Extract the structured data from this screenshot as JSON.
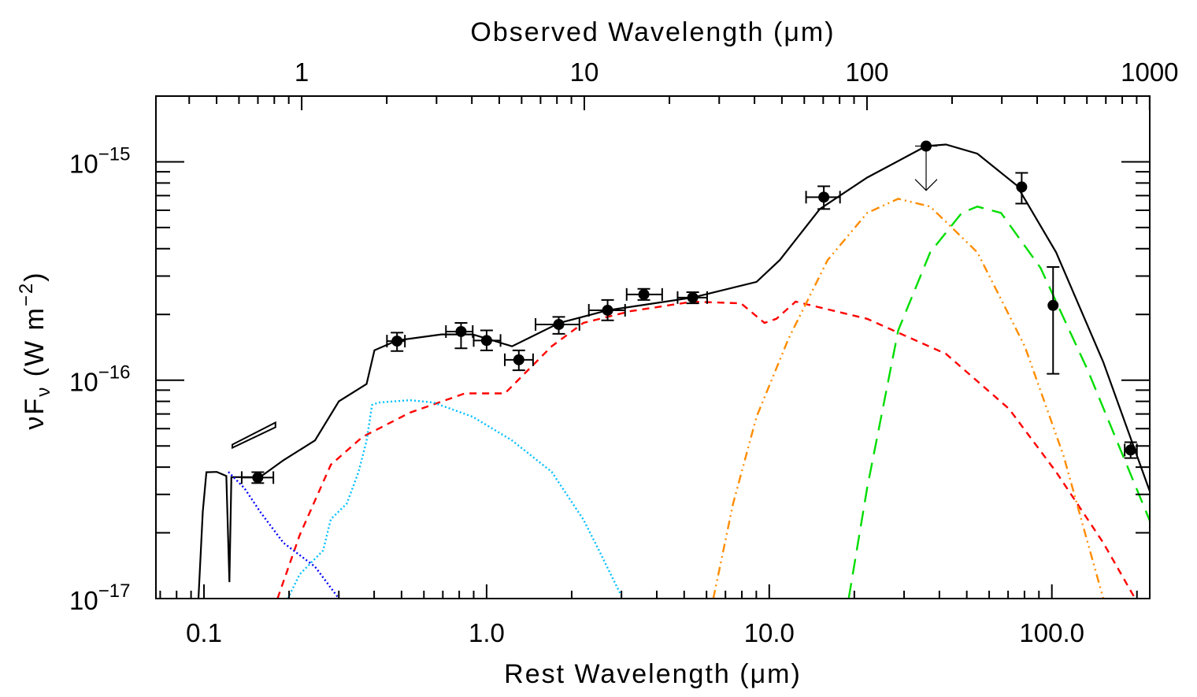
{
  "chart_data": {
    "type": "line",
    "xlabel": "Rest Wavelength (μm)",
    "top_xlabel": "Observed Wavelength (μm)",
    "ylabel": {
      "main": "νF",
      "sub": "ν",
      "unit": " (W m",
      "sup": "−2",
      "close": ")"
    },
    "x_scale": "log",
    "y_scale": "log",
    "xlim": [
      0.0676,
      222
    ],
    "top_xlim": [
      0.305,
      1001
    ],
    "ylim": [
      1e-17,
      2e-15
    ],
    "grid": false,
    "x_ticks": [
      {
        "value": 0.1,
        "label": "0.1"
      },
      {
        "value": 1.0,
        "label": "1.0"
      },
      {
        "value": 10.0,
        "label": "10.0"
      },
      {
        "value": 100.0,
        "label": "100.0"
      }
    ],
    "top_x_ticks": [
      {
        "value": 1,
        "label": "1"
      },
      {
        "value": 10,
        "label": "10"
      },
      {
        "value": 100,
        "label": "100"
      },
      {
        "value": 1000,
        "label": "1000"
      }
    ],
    "y_ticks": [
      {
        "value": 1e-15,
        "base": "10",
        "exp": "−15"
      },
      {
        "value": 1e-16,
        "base": "10",
        "exp": "−16"
      },
      {
        "value": 1e-17,
        "base": "10",
        "exp": "−17"
      }
    ],
    "points": [
      {
        "x": 0.155,
        "y": 3.58e-17,
        "xlo": 0.136,
        "xhi": 0.176,
        "ylo": 3.38e-17,
        "yhi": 3.79e-17
      },
      {
        "x": 0.482,
        "y": 1.51e-16,
        "xlo": 0.444,
        "xhi": 0.514,
        "ylo": 1.36e-16,
        "yhi": 1.65e-16
      },
      {
        "x": 0.812,
        "y": 1.67e-16,
        "xlo": 0.718,
        "xhi": 0.893,
        "ylo": 1.4e-16,
        "yhi": 1.83e-16
      },
      {
        "x": 1.0,
        "y": 1.52e-16,
        "xlo": 0.9,
        "xhi": 1.12,
        "ylo": 1.37e-16,
        "yhi": 1.69e-16
      },
      {
        "x": 1.3,
        "y": 1.24e-16,
        "xlo": 1.16,
        "xhi": 1.46,
        "ylo": 1.11e-16,
        "yhi": 1.37e-16
      },
      {
        "x": 1.8,
        "y": 1.8e-16,
        "xlo": 1.49,
        "xhi": 2.13,
        "ylo": 1.63e-16,
        "yhi": 1.95e-16
      },
      {
        "x": 2.68,
        "y": 2.09e-16,
        "xlo": 2.3,
        "xhi": 3.09,
        "ylo": 1.88e-16,
        "yhi": 2.33e-16
      },
      {
        "x": 3.6,
        "y": 2.47e-16,
        "xlo": 3.13,
        "xhi": 4.18,
        "ylo": 2.33e-16,
        "yhi": 2.62e-16
      },
      {
        "x": 5.36,
        "y": 2.39e-16,
        "xlo": 4.74,
        "xhi": 6.03,
        "ylo": 2.25e-16,
        "yhi": 2.53e-16
      },
      {
        "x": 15.6,
        "y": 6.89e-16,
        "xlo": 13.5,
        "xhi": 17.8,
        "ylo": 6.08e-16,
        "yhi": 7.73e-16
      },
      {
        "x": 35.9,
        "y": 1.18e-15,
        "upper_limit": true,
        "arrow_to": 7.4e-16
      },
      {
        "x": 78.2,
        "y": 7.67e-16,
        "ylo": 6.44e-16,
        "yhi": 8.9e-16
      },
      {
        "x": 101,
        "y": 2.2e-16,
        "ylo": 1.07e-16,
        "yhi": 3.3e-16
      },
      {
        "x": 190,
        "y": 4.79e-17,
        "xlo": 181,
        "xhi": 200,
        "ylo": 4.4e-17,
        "yhi": 5.2e-17
      }
    ],
    "uv_slope": {
      "x": [
        0.126,
        0.179
      ],
      "y": [
        5.07e-17,
        6.24e-17
      ]
    },
    "series": [
      {
        "key": "total",
        "color": "#000000",
        "style": "solid",
        "x": [
          0.0956,
          0.099,
          0.102,
          0.111,
          0.12,
          0.123,
          0.125,
          0.158,
          0.191,
          0.247,
          0.3,
          0.376,
          0.401,
          0.482,
          0.692,
          0.893,
          1.23,
          1.81,
          2.68,
          5.36,
          9.02,
          10.9,
          15.1,
          22.2,
          35.9,
          42.2,
          54.5,
          75.1,
          103.5,
          152,
          224
        ],
        "y": [
          1e-17,
          2.5e-17,
          3.79e-17,
          3.8e-17,
          3.64e-17,
          1.19e-17,
          3.6e-17,
          3.6e-17,
          4.3e-17,
          5.3e-17,
          8e-17,
          9.6e-17,
          1.37e-16,
          1.52e-16,
          1.62e-16,
          1.62e-16,
          1.43e-16,
          1.83e-16,
          2.09e-16,
          2.39e-16,
          2.82e-16,
          3.55e-16,
          6.08e-16,
          8.47e-16,
          1.18e-15,
          1.2e-15,
          1.09e-15,
          7.8e-16,
          3.85e-16,
          1.21e-16,
          3e-17
        ]
      },
      {
        "key": "red-dashed",
        "color": "#ff0000",
        "style": "dashed",
        "x": [
          0.182,
          0.218,
          0.281,
          0.364,
          0.535,
          0.838,
          1.16,
          1.7,
          2.2,
          3.23,
          5.36,
          7.94,
          9.62,
          10.6,
          12.4,
          22.2,
          42.2,
          70.5,
          103.5,
          152,
          197
        ],
        "y": [
          1e-17,
          1.95e-17,
          4.1e-17,
          5.5e-17,
          7.1e-17,
          8.7e-17,
          8.7e-17,
          1.43e-16,
          1.83e-16,
          2.07e-16,
          2.29e-16,
          2.25e-16,
          1.83e-16,
          1.91e-16,
          2.29e-16,
          1.91e-16,
          1.32e-16,
          7.4e-17,
          3.8e-17,
          1.8e-17,
          1e-17
        ]
      },
      {
        "key": "orange-dash-dot",
        "color": "#ff8c00",
        "style": "dashdotdot",
        "x": [
          6.34,
          7.45,
          9.02,
          11.7,
          16.1,
          22.2,
          28.6,
          37.1,
          54.5,
          80.2,
          110,
          152
        ],
        "y": [
          1e-17,
          2.72e-17,
          6.8e-17,
          1.55e-16,
          3.55e-16,
          5.83e-16,
          6.77e-16,
          6.24e-16,
          3.85e-16,
          1.43e-16,
          4.5e-17,
          1e-17
        ]
      },
      {
        "key": "green-long-dash",
        "color": "#00dd00",
        "style": "longdash",
        "x": [
          19.1,
          22.2,
          28.6,
          37.1,
          48.0,
          54.5,
          66.1,
          91.2,
          134,
          224
        ],
        "y": [
          1e-17,
          3.2e-17,
          1.69e-16,
          3.85e-16,
          5.83e-16,
          6.24e-16,
          5.83e-16,
          3.27e-16,
          1.11e-16,
          2.21e-17
        ]
      },
      {
        "key": "cyan-dotted",
        "color": "#00bfff",
        "style": "dotted",
        "x": [
          0.198,
          0.218,
          0.264,
          0.281,
          0.32,
          0.352,
          0.376,
          0.393,
          0.414,
          0.535,
          0.648,
          0.893,
          1.23,
          1.7,
          2.2,
          2.5,
          3.03
        ],
        "y": [
          1e-17,
          1.29e-17,
          1.66e-17,
          2.31e-17,
          2.72e-17,
          3.79e-17,
          5.28e-17,
          7.7e-17,
          7.9e-17,
          8.1e-17,
          7.9e-17,
          6.8e-17,
          5.3e-17,
          3.8e-17,
          2.3e-17,
          1.66e-17,
          1e-17
        ]
      },
      {
        "key": "blue-dotted",
        "color": "#0000ff",
        "style": "dotted",
        "x": [
          0.122,
          0.139,
          0.158,
          0.191,
          0.247,
          0.3
        ],
        "y": [
          3.8e-17,
          3.2e-17,
          2.5e-17,
          1.8e-17,
          1.4e-17,
          1e-17
        ]
      }
    ]
  }
}
